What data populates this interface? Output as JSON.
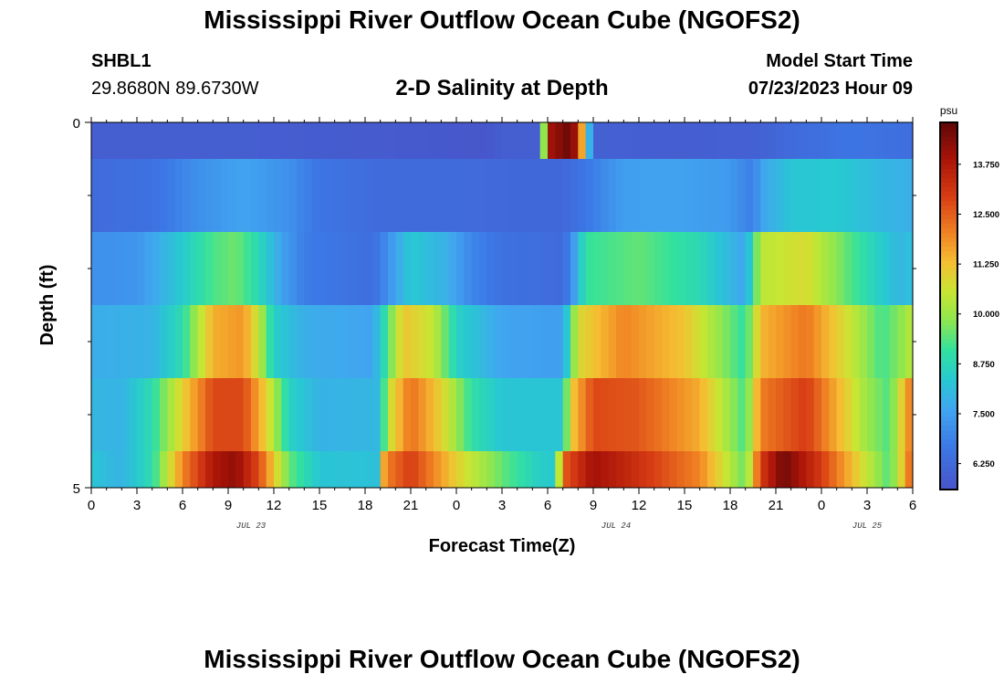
{
  "header": {
    "title": "Mississippi River Outflow Ocean Cube (NGOFS2)",
    "station_id": "SHBL1",
    "station_coords": "29.8680N  89.6730W",
    "subtitle": "2-D Salinity at Depth",
    "start_label": "Model Start Time",
    "start_value": "07/23/2023 Hour 09"
  },
  "footer": {
    "title": "Mississippi River Outflow Ocean Cube (NGOFS2)"
  },
  "chart_data": {
    "type": "heatmap",
    "title": "2-D Salinity at Depth",
    "xlabel": "Forecast Time(Z)",
    "ylabel": "Depth (ft)",
    "x_tick_labels": [
      "0",
      "3",
      "6",
      "9",
      "12",
      "15",
      "18",
      "21",
      "0",
      "3",
      "6",
      "9",
      "12",
      "15",
      "18",
      "21",
      "0",
      "3",
      "6"
    ],
    "x_range_hours": [
      0,
      54
    ],
    "date_labels": [
      {
        "label": "JUL 23",
        "hour": 10.5
      },
      {
        "label": "JUL 24",
        "hour": 34.5
      },
      {
        "label": "JUL 25",
        "hour": 51
      }
    ],
    "y_tick_labels": [
      "0",
      "5"
    ],
    "ylim": [
      0,
      5
    ],
    "colorbar": {
      "unit": "psu",
      "range": [
        5.6,
        14.8
      ],
      "tick_values": [
        6.25,
        7.5,
        8.75,
        10.0,
        11.25,
        12.5,
        13.75
      ],
      "tick_labels": [
        "6.250",
        "7.500",
        "8.750",
        "10.000",
        "11.250",
        "12.500",
        "13.750"
      ]
    },
    "layers": [
      {
        "depth_top": 0,
        "depth_bottom": 0.5,
        "salinity": [
          [
            0,
            5.9
          ],
          [
            10,
            5.9
          ],
          [
            20,
            5.8
          ],
          [
            26,
            5.7
          ],
          [
            27,
            5.9
          ],
          [
            29.5,
            5.9
          ],
          [
            30,
            13.9
          ],
          [
            31.5,
            14.7
          ],
          [
            32,
            13.5
          ],
          [
            33,
            6.0
          ],
          [
            38,
            5.9
          ],
          [
            44,
            6.0
          ],
          [
            46,
            6.3
          ],
          [
            50,
            6.6
          ],
          [
            52,
            6.5
          ],
          [
            54,
            6.4
          ]
        ]
      },
      {
        "depth_top": 0.5,
        "depth_bottom": 1.5,
        "salinity": [
          [
            0,
            6.3
          ],
          [
            4,
            6.5
          ],
          [
            7,
            7.2
          ],
          [
            10,
            7.6
          ],
          [
            13,
            7.2
          ],
          [
            15,
            6.6
          ],
          [
            19,
            6.3
          ],
          [
            24,
            6.3
          ],
          [
            29,
            6.2
          ],
          [
            31,
            6.2
          ],
          [
            32,
            6.5
          ],
          [
            35,
            7.5
          ],
          [
            38,
            7.6
          ],
          [
            42,
            7.4
          ],
          [
            43.5,
            6.8
          ],
          [
            44,
            7.6
          ],
          [
            46,
            8.3
          ],
          [
            49,
            8.4
          ],
          [
            52,
            8.0
          ],
          [
            54,
            7.8
          ]
        ]
      },
      {
        "depth_top": 1.5,
        "depth_bottom": 2.5,
        "salinity": [
          [
            0,
            7.2
          ],
          [
            3,
            7.3
          ],
          [
            5,
            8.0
          ],
          [
            8,
            9.3
          ],
          [
            9.5,
            9.6
          ],
          [
            11,
            8.8
          ],
          [
            12.5,
            7.6
          ],
          [
            14,
            6.8
          ],
          [
            18.5,
            6.4
          ],
          [
            19.5,
            7.2
          ],
          [
            21,
            8.4
          ],
          [
            23.5,
            7.8
          ],
          [
            25,
            7.0
          ],
          [
            27,
            6.5
          ],
          [
            31,
            6.3
          ],
          [
            31.5,
            7.0
          ],
          [
            32.5,
            9.1
          ],
          [
            36,
            9.5
          ],
          [
            40,
            8.8
          ],
          [
            43,
            7.6
          ],
          [
            44,
            10.4
          ],
          [
            47,
            10.8
          ],
          [
            50,
            9.3
          ],
          [
            53,
            8.0
          ],
          [
            54,
            8.2
          ]
        ]
      },
      {
        "depth_top": 2.5,
        "depth_bottom": 3.5,
        "salinity": [
          [
            0,
            7.8
          ],
          [
            4,
            7.9
          ],
          [
            6,
            8.9
          ],
          [
            8,
            11.5
          ],
          [
            10,
            11.8
          ],
          [
            11,
            10.5
          ],
          [
            12,
            8.5
          ],
          [
            14,
            7.8
          ],
          [
            18.5,
            7.6
          ],
          [
            19.3,
            8.9
          ],
          [
            20.5,
            11.2
          ],
          [
            22.5,
            10.5
          ],
          [
            24,
            8.6
          ],
          [
            27,
            7.6
          ],
          [
            31,
            7.5
          ],
          [
            32,
            10.8
          ],
          [
            35,
            12.0
          ],
          [
            39,
            11.2
          ],
          [
            43,
            9.0
          ],
          [
            44,
            11.4
          ],
          [
            47,
            12.2
          ],
          [
            50,
            10.5
          ],
          [
            52,
            9.2
          ],
          [
            53.5,
            10.0
          ],
          [
            54,
            10.5
          ]
        ]
      },
      {
        "depth_top": 3.5,
        "depth_bottom": 4.5,
        "salinity": [
          [
            0,
            8.0
          ],
          [
            2,
            7.9
          ],
          [
            4,
            8.9
          ],
          [
            6,
            11.0
          ],
          [
            8,
            12.8
          ],
          [
            10,
            12.8
          ],
          [
            11.5,
            11.0
          ],
          [
            13,
            8.6
          ],
          [
            15,
            7.9
          ],
          [
            19,
            8.0
          ],
          [
            19.5,
            10.5
          ],
          [
            21,
            12.3
          ],
          [
            23,
            11.0
          ],
          [
            25,
            9.0
          ],
          [
            27,
            8.3
          ],
          [
            31,
            8.3
          ],
          [
            31.5,
            11.0
          ],
          [
            33,
            12.8
          ],
          [
            36,
            12.6
          ],
          [
            40,
            11.5
          ],
          [
            43,
            9.2
          ],
          [
            44,
            12.1
          ],
          [
            47,
            13.0
          ],
          [
            51,
            10.0
          ],
          [
            52.5,
            9.3
          ],
          [
            53.5,
            11.5
          ],
          [
            54,
            12.3
          ]
        ]
      },
      {
        "depth_top": 4.5,
        "depth_bottom": 5,
        "salinity": [
          [
            0,
            8.3
          ],
          [
            2,
            7.9
          ],
          [
            4,
            8.9
          ],
          [
            6,
            12.0
          ],
          [
            8,
            13.8
          ],
          [
            9.5,
            14.2
          ],
          [
            11,
            12.8
          ],
          [
            13,
            9.5
          ],
          [
            15,
            8.3
          ],
          [
            18.8,
            8.2
          ],
          [
            19.3,
            12.0
          ],
          [
            21,
            13.0
          ],
          [
            24,
            11.0
          ],
          [
            27,
            9.5
          ],
          [
            29.5,
            8.5
          ],
          [
            30.5,
            8.4
          ],
          [
            31,
            12.5
          ],
          [
            33,
            14.0
          ],
          [
            36,
            13.2
          ],
          [
            40,
            12.0
          ],
          [
            43,
            9.5
          ],
          [
            44,
            13.0
          ],
          [
            45.5,
            14.6
          ],
          [
            48,
            13.0
          ],
          [
            51,
            10.5
          ],
          [
            52.5,
            9.3
          ],
          [
            53.5,
            11.5
          ],
          [
            54,
            12.8
          ]
        ]
      }
    ]
  }
}
